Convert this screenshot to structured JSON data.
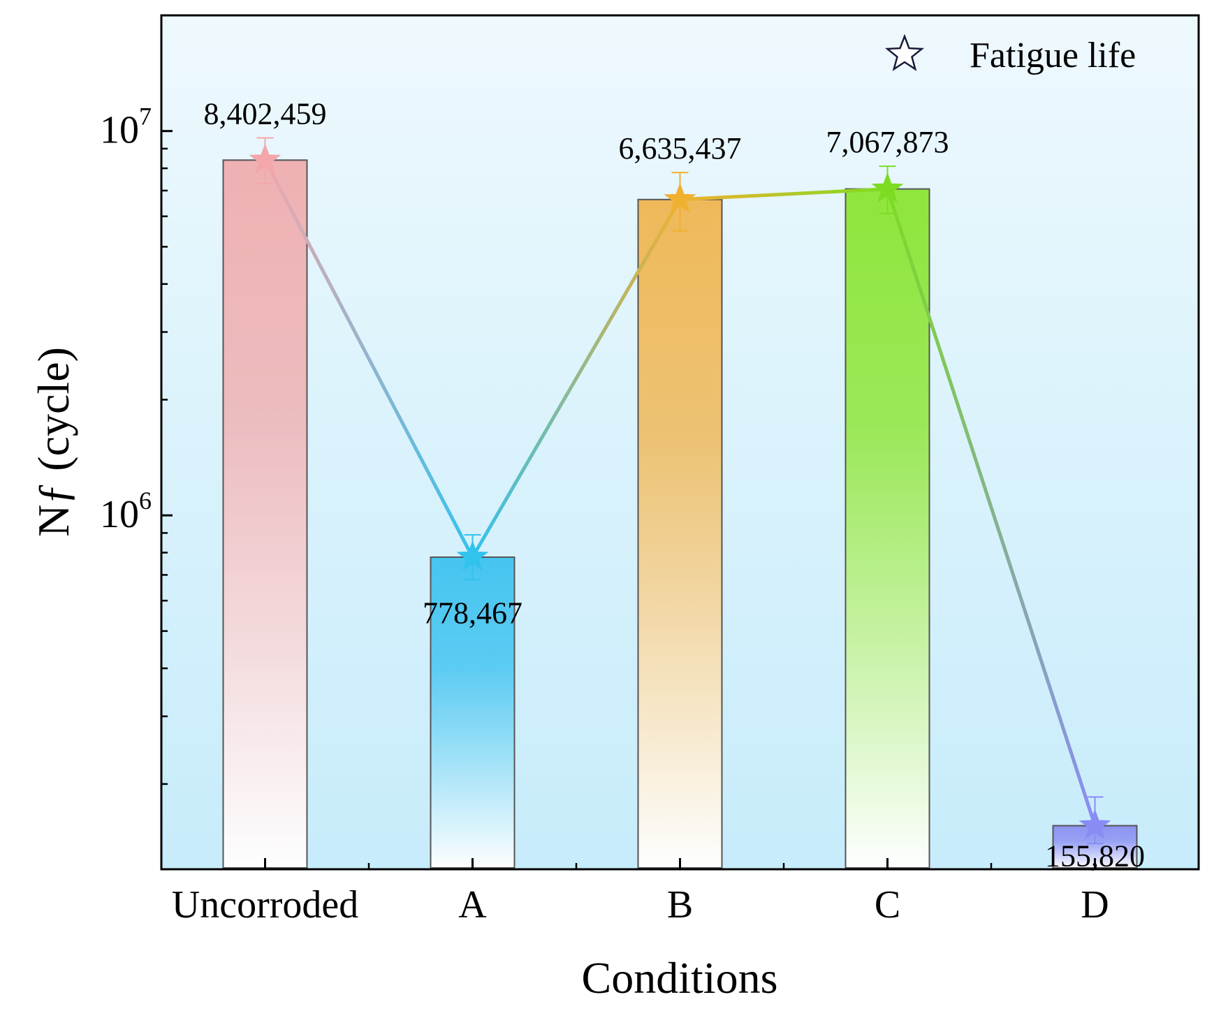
{
  "chart_data": {
    "type": "bar",
    "title": "",
    "xlabel": "Conditions",
    "ylabel": "Nƒ (cycle)",
    "y_scale": "log",
    "ylim": [
      120000,
      20000000
    ],
    "y_ticks": [
      {
        "value": 1000000,
        "base": "10",
        "exp": "6"
      },
      {
        "value": 10000000,
        "base": "10",
        "exp": "7"
      }
    ],
    "grid": false,
    "legend": {
      "position": "top-right",
      "entries": [
        "Fatigue life"
      ]
    },
    "categories": [
      "Uncorroded",
      "A",
      "B",
      "C",
      "D"
    ],
    "series": [
      {
        "name": "Fatigue life",
        "values": [
          8402459,
          778467,
          6635437,
          7067873,
          155820
        ],
        "labels": [
          "8,402,459",
          "778,467",
          "6,635,437",
          "7,067,873",
          "155,820"
        ],
        "error_upper": [
          9600000,
          890000,
          7800000,
          8100000,
          185000
        ],
        "error_lower": [
          7300000,
          680000,
          5500000,
          6100000,
          140000
        ]
      }
    ],
    "colors": {
      "background_top": "#eef9fd",
      "background_bottom": "#c7ecfb",
      "bars": [
        "#efb1b3",
        "#46c5f0",
        "#efb95a",
        "#8fe63c",
        "#8d93f2"
      ],
      "markers": [
        "#f3a7ab",
        "#32c2ee",
        "#f0b030",
        "#7ddc22",
        "#8a8cf5"
      ]
    }
  }
}
